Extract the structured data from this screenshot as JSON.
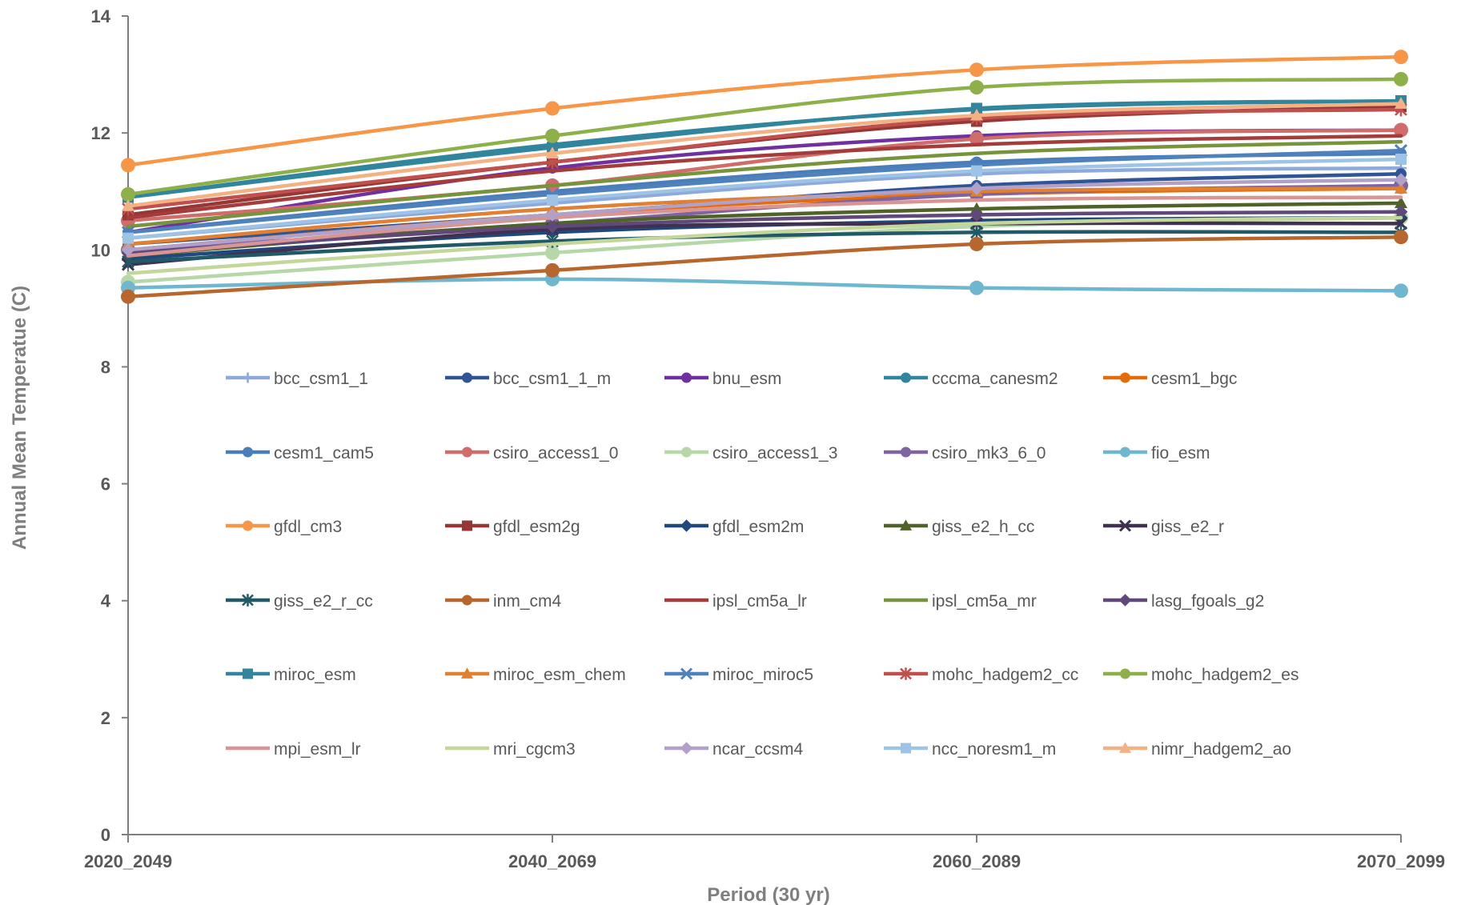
{
  "chart_data": {
    "type": "line",
    "title": "",
    "xlabel": "Period (30 yr)",
    "ylabel": "Annual Mean Temperatue (C)",
    "categories": [
      "2020_2049",
      "2040_2069",
      "2060_2089",
      "2070_2099"
    ],
    "ylim": [
      0,
      14
    ],
    "yticks": [
      0,
      2,
      4,
      6,
      8,
      10,
      12,
      14
    ],
    "grid": false,
    "legend_position": "inside-center",
    "series": [
      {
        "name": "bcc_csm1_1",
        "color": "#8EA9DB",
        "marker": "plus",
        "values": [
          10.2,
          10.8,
          11.3,
          11.4
        ]
      },
      {
        "name": "bcc_csm1_1_m",
        "color": "#2F5597",
        "marker": "circle",
        "values": [
          10.1,
          10.6,
          11.1,
          11.3
        ]
      },
      {
        "name": "bnu_esm",
        "color": "#7030A0",
        "marker": "circle",
        "values": [
          10.3,
          11.4,
          11.95,
          12.05
        ]
      },
      {
        "name": "cccma_canesm2",
        "color": "#31859C",
        "marker": "circle",
        "values": [
          10.9,
          11.8,
          12.4,
          12.55
        ]
      },
      {
        "name": "cesm1_bgc",
        "color": "#E46C0A",
        "marker": "circle",
        "values": [
          10.0,
          10.6,
          10.95,
          11.05
        ]
      },
      {
        "name": "cesm1_cam5",
        "color": "#4A7EBB",
        "marker": "circle",
        "values": [
          10.3,
          11.0,
          11.5,
          11.65
        ]
      },
      {
        "name": "csiro_access1_0",
        "color": "#D06D6A",
        "marker": "circle",
        "values": [
          10.5,
          11.1,
          11.9,
          12.05
        ]
      },
      {
        "name": "csiro_access1_3",
        "color": "#B6D7A8",
        "marker": "circle",
        "values": [
          9.45,
          9.95,
          10.4,
          10.55
        ]
      },
      {
        "name": "csiro_mk3_6_0",
        "color": "#8064A2",
        "marker": "circle",
        "values": [
          10.0,
          10.45,
          10.95,
          11.1
        ]
      },
      {
        "name": "fio_esm",
        "color": "#6FB7CF",
        "marker": "circle",
        "values": [
          9.35,
          9.5,
          9.35,
          9.3
        ]
      },
      {
        "name": "gfdl_cm3",
        "color": "#F79646",
        "marker": "circle",
        "values": [
          11.45,
          12.42,
          13.08,
          13.3
        ]
      },
      {
        "name": "gfdl_esm2g",
        "color": "#953735",
        "marker": "square",
        "values": [
          10.6,
          11.5,
          12.2,
          12.45
        ]
      },
      {
        "name": "gfdl_esm2m",
        "color": "#1F497D",
        "marker": "diamond",
        "values": [
          9.85,
          10.3,
          10.5,
          10.55
        ]
      },
      {
        "name": "giss_e2_h_cc",
        "color": "#4F6228",
        "marker": "triangle",
        "values": [
          9.9,
          10.45,
          10.7,
          10.8
        ]
      },
      {
        "name": "giss_e2_r",
        "color": "#403151",
        "marker": "x",
        "values": [
          9.75,
          10.35,
          10.45,
          10.45
        ]
      },
      {
        "name": "giss_e2_r_cc",
        "color": "#215967",
        "marker": "star",
        "values": [
          9.8,
          10.15,
          10.3,
          10.3
        ]
      },
      {
        "name": "inm_cm4",
        "color": "#B7672E",
        "marker": "circle",
        "values": [
          9.2,
          9.65,
          10.1,
          10.22
        ]
      },
      {
        "name": "ipsl_cm5a_lr",
        "color": "#A53C3C",
        "marker": "none",
        "values": [
          10.55,
          11.35,
          11.8,
          11.95
        ]
      },
      {
        "name": "ipsl_cm5a_mr",
        "color": "#77933C",
        "marker": "none",
        "values": [
          10.4,
          11.1,
          11.65,
          11.85
        ]
      },
      {
        "name": "lasg_fgoals_g2",
        "color": "#60497A",
        "marker": "diamond",
        "values": [
          9.95,
          10.4,
          10.6,
          10.65
        ]
      },
      {
        "name": "miroc_esm",
        "color": "#31859C",
        "marker": "square",
        "values": [
          10.9,
          11.75,
          12.42,
          12.55
        ]
      },
      {
        "name": "miroc_esm_chem",
        "color": "#E08030",
        "marker": "triangle",
        "values": [
          10.1,
          10.7,
          11.0,
          11.05
        ]
      },
      {
        "name": "miroc_miroc5",
        "color": "#4F81BD",
        "marker": "x",
        "values": [
          10.3,
          10.95,
          11.45,
          11.7
        ]
      },
      {
        "name": "mohc_hadgem2_cc",
        "color": "#C0504D",
        "marker": "star",
        "values": [
          10.7,
          11.5,
          12.25,
          12.4
        ]
      },
      {
        "name": "mohc_hadgem2_es",
        "color": "#8DB04A",
        "marker": "circle",
        "values": [
          10.95,
          11.95,
          12.78,
          12.92
        ]
      },
      {
        "name": "mpi_esm_lr",
        "color": "#D99594",
        "marker": "none",
        "values": [
          9.9,
          10.55,
          10.85,
          10.9
        ]
      },
      {
        "name": "mri_cgcm3",
        "color": "#C4D79B",
        "marker": "none",
        "values": [
          9.6,
          10.1,
          10.45,
          10.55
        ]
      },
      {
        "name": "ncar_ccsm4",
        "color": "#B1A0C7",
        "marker": "diamond",
        "values": [
          10.0,
          10.6,
          11.05,
          11.2
        ]
      },
      {
        "name": "ncc_noresm1_m",
        "color": "#9DC3E6",
        "marker": "square",
        "values": [
          10.2,
          10.85,
          11.35,
          11.55
        ]
      },
      {
        "name": "nimr_hadgem2_ao",
        "color": "#F4B183",
        "marker": "triangle",
        "values": [
          10.75,
          11.65,
          12.3,
          12.5
        ]
      }
    ]
  }
}
